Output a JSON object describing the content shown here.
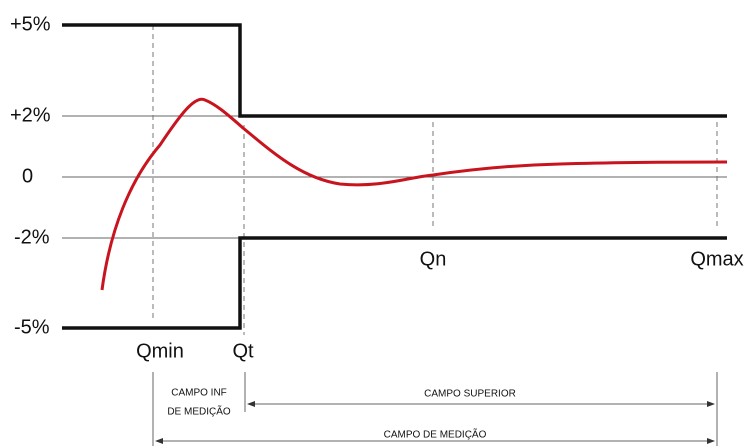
{
  "y_labels": [
    "+5%",
    "+2%",
    "0",
    "-2%",
    "-5%"
  ],
  "flow_labels": {
    "qmin": "Qmin",
    "qt": "Qt",
    "qn": "Qn",
    "qmax": "Qmax"
  },
  "ranges": {
    "lower": [
      "CAMPO INF",
      "DE MEDIÇÃO"
    ],
    "upper": "CAMPO SUPERIOR",
    "total": "CAMPO DE MEDIÇÃO"
  }
}
